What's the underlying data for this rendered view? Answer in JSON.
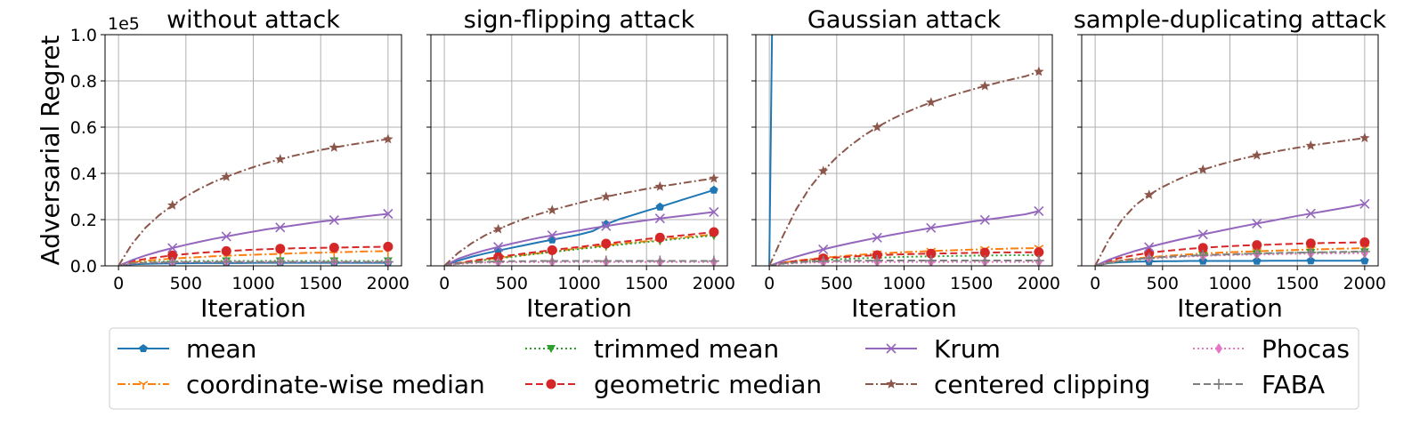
{
  "figure": {
    "ylabel": "Adversarial Regret",
    "xlabel": "Iteration",
    "y_offset_text": "1e5"
  },
  "legend": {
    "placement": "bottom-center",
    "entries": [
      {
        "label": "mean",
        "color": "#1f77b4",
        "marker": "pentagon",
        "linestyle": "solid"
      },
      {
        "label": "coordinate-wise median",
        "color": "#ff7f0e",
        "marker": "tri_down",
        "linestyle": "dashdot"
      },
      {
        "label": "trimmed mean",
        "color": "#2ca02c",
        "marker": "triangle_down",
        "linestyle": "dotted"
      },
      {
        "label": "geometric median",
        "color": "#d62728",
        "marker": "circle",
        "linestyle": "dashed"
      },
      {
        "label": "Krum",
        "color": "#9467bd",
        "marker": "x",
        "linestyle": "solid"
      },
      {
        "label": "centered clipping",
        "color": "#8c564b",
        "marker": "star",
        "linestyle": "dashdot"
      },
      {
        "label": "Phocas",
        "color": "#e377c2",
        "marker": "thin_diamond",
        "linestyle": "dotted"
      },
      {
        "label": "FABA",
        "color": "#7f7f7f",
        "marker": "plus",
        "linestyle": "dashed"
      }
    ]
  },
  "chart_data": [
    {
      "type": "line",
      "title": "without attack",
      "xlabel": "Iteration",
      "ylabel": "Adversarial Regret",
      "xlim": [
        -100,
        2100
      ],
      "ylim": [
        0,
        1.0
      ],
      "y_scale_label": "1e5",
      "xticks": [
        0,
        500,
        1000,
        1500,
        2000
      ],
      "yticks": [
        0.0,
        0.2,
        0.4,
        0.6,
        0.8,
        1.0
      ],
      "grid": true,
      "x": [
        0,
        100,
        200,
        300,
        400,
        500,
        600,
        700,
        800,
        900,
        1000,
        1100,
        1200,
        1300,
        1400,
        1500,
        1600,
        1700,
        1800,
        1900,
        2000
      ],
      "series": [
        {
          "name": "mean",
          "values": [
            0,
            0.007,
            0.009,
            0.01,
            0.011,
            0.011,
            0.012,
            0.012,
            0.012,
            0.012,
            0.013,
            0.013,
            0.013,
            0.013,
            0.013,
            0.013,
            0.013,
            0.013,
            0.013,
            0.013,
            0.013
          ]
        },
        {
          "name": "coordinate-wise median",
          "values": [
            0,
            0.015,
            0.022,
            0.027,
            0.031,
            0.035,
            0.038,
            0.041,
            0.044,
            0.046,
            0.048,
            0.05,
            0.052,
            0.054,
            0.056,
            0.057,
            0.059,
            0.06,
            0.062,
            0.063,
            0.064
          ]
        },
        {
          "name": "trimmed mean",
          "values": [
            0,
            0.012,
            0.016,
            0.018,
            0.019,
            0.02,
            0.021,
            0.021,
            0.021,
            0.021,
            0.021,
            0.021,
            0.021,
            0.021,
            0.021,
            0.021,
            0.021,
            0.021,
            0.021,
            0.021,
            0.021
          ]
        },
        {
          "name": "geometric median",
          "values": [
            0,
            0.02,
            0.03,
            0.038,
            0.045,
            0.051,
            0.056,
            0.06,
            0.064,
            0.067,
            0.07,
            0.072,
            0.074,
            0.076,
            0.077,
            0.078,
            0.079,
            0.08,
            0.081,
            0.082,
            0.083
          ]
        },
        {
          "name": "Krum",
          "values": [
            0,
            0.025,
            0.045,
            0.062,
            0.077,
            0.091,
            0.104,
            0.116,
            0.127,
            0.138,
            0.148,
            0.158,
            0.166,
            0.175,
            0.183,
            0.191,
            0.198,
            0.205,
            0.212,
            0.219,
            0.225
          ]
        },
        {
          "name": "centered clipping",
          "values": [
            0,
            0.095,
            0.165,
            0.218,
            0.262,
            0.3,
            0.333,
            0.361,
            0.385,
            0.407,
            0.427,
            0.445,
            0.461,
            0.476,
            0.489,
            0.501,
            0.512,
            0.522,
            0.531,
            0.54,
            0.548
          ]
        },
        {
          "name": "Phocas",
          "values": [
            0,
            0.01,
            0.013,
            0.014,
            0.015,
            0.016,
            0.016,
            0.016,
            0.017,
            0.017,
            0.017,
            0.017,
            0.017,
            0.017,
            0.017,
            0.017,
            0.017,
            0.017,
            0.017,
            0.017,
            0.017
          ]
        },
        {
          "name": "FABA",
          "values": [
            0,
            0.01,
            0.013,
            0.015,
            0.016,
            0.016,
            0.017,
            0.017,
            0.017,
            0.017,
            0.017,
            0.017,
            0.017,
            0.017,
            0.017,
            0.017,
            0.017,
            0.017,
            0.017,
            0.017,
            0.017
          ]
        }
      ]
    },
    {
      "type": "line",
      "title": "sign-flipping attack",
      "xlabel": "Iteration",
      "xlim": [
        -100,
        2100
      ],
      "ylim": [
        0,
        1.0
      ],
      "xticks": [
        0,
        500,
        1000,
        1500,
        2000
      ],
      "yticks": [
        0.0,
        0.2,
        0.4,
        0.6,
        0.8,
        1.0
      ],
      "grid": true,
      "x": [
        0,
        100,
        200,
        300,
        400,
        500,
        600,
        700,
        800,
        900,
        1000,
        1100,
        1200,
        1300,
        1400,
        1500,
        1600,
        1700,
        1800,
        1900,
        2000
      ],
      "series": [
        {
          "name": "mean",
          "values": [
            0,
            0.022,
            0.039,
            0.053,
            0.066,
            0.078,
            0.09,
            0.102,
            0.113,
            0.124,
            0.135,
            0.15,
            0.18,
            0.202,
            0.22,
            0.238,
            0.255,
            0.274,
            0.292,
            0.31,
            0.328
          ]
        },
        {
          "name": "coordinate-wise median",
          "values": [
            0,
            0.01,
            0.018,
            0.026,
            0.034,
            0.041,
            0.048,
            0.055,
            0.062,
            0.069,
            0.076,
            0.082,
            0.089,
            0.095,
            0.101,
            0.107,
            0.113,
            0.119,
            0.125,
            0.13,
            0.136
          ]
        },
        {
          "name": "trimmed mean",
          "values": [
            0,
            0.009,
            0.017,
            0.025,
            0.032,
            0.039,
            0.046,
            0.053,
            0.06,
            0.066,
            0.073,
            0.079,
            0.085,
            0.091,
            0.097,
            0.103,
            0.109,
            0.115,
            0.12,
            0.126,
            0.131
          ]
        },
        {
          "name": "geometric median",
          "values": [
            0,
            0.012,
            0.021,
            0.03,
            0.038,
            0.046,
            0.054,
            0.061,
            0.068,
            0.075,
            0.082,
            0.089,
            0.096,
            0.103,
            0.109,
            0.116,
            0.122,
            0.128,
            0.134,
            0.14,
            0.146
          ]
        },
        {
          "name": "Krum",
          "values": [
            0,
            0.03,
            0.05,
            0.067,
            0.082,
            0.096,
            0.109,
            0.121,
            0.132,
            0.143,
            0.153,
            0.163,
            0.172,
            0.181,
            0.189,
            0.197,
            0.205,
            0.212,
            0.219,
            0.226,
            0.233
          ]
        },
        {
          "name": "centered clipping",
          "values": [
            0,
            0.055,
            0.097,
            0.131,
            0.159,
            0.183,
            0.205,
            0.224,
            0.241,
            0.257,
            0.272,
            0.286,
            0.299,
            0.311,
            0.322,
            0.333,
            0.343,
            0.352,
            0.361,
            0.37,
            0.378
          ]
        },
        {
          "name": "Phocas",
          "values": [
            0,
            0.008,
            0.012,
            0.014,
            0.015,
            0.016,
            0.016,
            0.016,
            0.017,
            0.017,
            0.017,
            0.017,
            0.017,
            0.017,
            0.017,
            0.017,
            0.017,
            0.017,
            0.017,
            0.017,
            0.017
          ]
        },
        {
          "name": "FABA",
          "values": [
            0,
            0.01,
            0.015,
            0.017,
            0.019,
            0.02,
            0.02,
            0.021,
            0.021,
            0.021,
            0.021,
            0.021,
            0.021,
            0.021,
            0.021,
            0.021,
            0.021,
            0.021,
            0.021,
            0.021,
            0.021
          ]
        }
      ]
    },
    {
      "type": "line",
      "title": "Gaussian attack",
      "xlabel": "Iteration",
      "xlim": [
        -100,
        2100
      ],
      "ylim": [
        0,
        1.0
      ],
      "xticks": [
        0,
        500,
        1000,
        1500,
        2000
      ],
      "yticks": [
        0.0,
        0.2,
        0.4,
        0.6,
        0.8,
        1.0
      ],
      "grid": true,
      "x": [
        0,
        100,
        200,
        300,
        400,
        500,
        600,
        700,
        800,
        900,
        1000,
        1100,
        1200,
        1300,
        1400,
        1500,
        1600,
        1700,
        1800,
        1900,
        2000
      ],
      "series": [
        {
          "name": "mean",
          "values": [
            0,
            5,
            5,
            5,
            5,
            5,
            5,
            5,
            5,
            5,
            5,
            5,
            5,
            5,
            5,
            5,
            5,
            5,
            5,
            5,
            5
          ]
        },
        {
          "name": "coordinate-wise median",
          "values": [
            0,
            0.014,
            0.022,
            0.029,
            0.035,
            0.04,
            0.045,
            0.049,
            0.053,
            0.056,
            0.059,
            0.062,
            0.064,
            0.066,
            0.068,
            0.07,
            0.072,
            0.073,
            0.075,
            0.076,
            0.077
          ]
        },
        {
          "name": "trimmed mean",
          "values": [
            0,
            0.01,
            0.016,
            0.021,
            0.025,
            0.028,
            0.031,
            0.033,
            0.035,
            0.037,
            0.039,
            0.04,
            0.041,
            0.042,
            0.043,
            0.044,
            0.045,
            0.045,
            0.046,
            0.046,
            0.047
          ]
        },
        {
          "name": "geometric median",
          "values": [
            0,
            0.013,
            0.021,
            0.027,
            0.032,
            0.036,
            0.04,
            0.043,
            0.046,
            0.048,
            0.05,
            0.052,
            0.053,
            0.054,
            0.055,
            0.056,
            0.057,
            0.058,
            0.058,
            0.059,
            0.059
          ]
        },
        {
          "name": "Krum",
          "values": [
            0,
            0.022,
            0.04,
            0.056,
            0.071,
            0.085,
            0.098,
            0.11,
            0.122,
            0.133,
            0.144,
            0.154,
            0.164,
            0.173,
            0.182,
            0.191,
            0.199,
            0.207,
            0.215,
            0.223,
            0.237
          ]
        },
        {
          "name": "centered clipping",
          "values": [
            0,
            0.128,
            0.245,
            0.338,
            0.41,
            0.47,
            0.52,
            0.563,
            0.6,
            0.632,
            0.66,
            0.685,
            0.707,
            0.727,
            0.745,
            0.762,
            0.778,
            0.793,
            0.807,
            0.82,
            0.84
          ]
        },
        {
          "name": "Phocas",
          "values": [
            0,
            0.008,
            0.012,
            0.014,
            0.015,
            0.016,
            0.016,
            0.016,
            0.017,
            0.017,
            0.017,
            0.017,
            0.017,
            0.017,
            0.017,
            0.017,
            0.017,
            0.017,
            0.017,
            0.017,
            0.017
          ]
        },
        {
          "name": "FABA",
          "values": [
            0,
            0.01,
            0.015,
            0.018,
            0.02,
            0.021,
            0.022,
            0.022,
            0.023,
            0.023,
            0.023,
            0.023,
            0.023,
            0.023,
            0.023,
            0.023,
            0.023,
            0.023,
            0.023,
            0.023,
            0.023
          ]
        }
      ]
    },
    {
      "type": "line",
      "title": "sample-duplicating attack",
      "xlabel": "Iteration",
      "xlim": [
        -100,
        2100
      ],
      "ylim": [
        0,
        1.0
      ],
      "xticks": [
        0,
        500,
        1000,
        1500,
        2000
      ],
      "yticks": [
        0.0,
        0.2,
        0.4,
        0.6,
        0.8,
        1.0
      ],
      "grid": true,
      "x": [
        0,
        100,
        200,
        300,
        400,
        500,
        600,
        700,
        800,
        900,
        1000,
        1100,
        1200,
        1300,
        1400,
        1500,
        1600,
        1700,
        1800,
        1900,
        2000
      ],
      "series": [
        {
          "name": "mean",
          "values": [
            0,
            0.012,
            0.016,
            0.018,
            0.019,
            0.02,
            0.02,
            0.021,
            0.021,
            0.021,
            0.021,
            0.021,
            0.021,
            0.022,
            0.022,
            0.022,
            0.022,
            0.022,
            0.022,
            0.022,
            0.022
          ]
        },
        {
          "name": "coordinate-wise median",
          "values": [
            0,
            0.016,
            0.025,
            0.032,
            0.037,
            0.042,
            0.046,
            0.05,
            0.053,
            0.056,
            0.059,
            0.061,
            0.063,
            0.065,
            0.067,
            0.069,
            0.071,
            0.072,
            0.074,
            0.075,
            0.077
          ]
        },
        {
          "name": "trimmed mean",
          "values": [
            0,
            0.012,
            0.02,
            0.026,
            0.031,
            0.035,
            0.038,
            0.041,
            0.044,
            0.046,
            0.048,
            0.05,
            0.052,
            0.053,
            0.054,
            0.056,
            0.057,
            0.058,
            0.059,
            0.059,
            0.06
          ]
        },
        {
          "name": "geometric median",
          "values": [
            0,
            0.022,
            0.036,
            0.047,
            0.056,
            0.063,
            0.069,
            0.074,
            0.078,
            0.082,
            0.085,
            0.088,
            0.09,
            0.092,
            0.094,
            0.096,
            0.097,
            0.099,
            0.1,
            0.101,
            0.102
          ]
        },
        {
          "name": "Krum",
          "values": [
            0,
            0.026,
            0.047,
            0.065,
            0.081,
            0.096,
            0.11,
            0.123,
            0.136,
            0.148,
            0.16,
            0.172,
            0.183,
            0.194,
            0.205,
            0.216,
            0.226,
            0.236,
            0.246,
            0.256,
            0.268
          ]
        },
        {
          "name": "centered clipping",
          "values": [
            0,
            0.112,
            0.2,
            0.263,
            0.307,
            0.341,
            0.37,
            0.395,
            0.416,
            0.434,
            0.45,
            0.465,
            0.478,
            0.49,
            0.501,
            0.511,
            0.52,
            0.529,
            0.537,
            0.545,
            0.553
          ]
        },
        {
          "name": "Phocas",
          "values": [
            0,
            0.014,
            0.022,
            0.028,
            0.032,
            0.036,
            0.039,
            0.041,
            0.043,
            0.045,
            0.047,
            0.048,
            0.049,
            0.05,
            0.051,
            0.052,
            0.053,
            0.053,
            0.054,
            0.054,
            0.055
          ]
        },
        {
          "name": "FABA",
          "values": [
            0,
            0.014,
            0.023,
            0.029,
            0.034,
            0.038,
            0.041,
            0.044,
            0.046,
            0.048,
            0.05,
            0.052,
            0.053,
            0.055,
            0.056,
            0.057,
            0.058,
            0.059,
            0.06,
            0.061,
            0.062
          ]
        }
      ]
    }
  ]
}
